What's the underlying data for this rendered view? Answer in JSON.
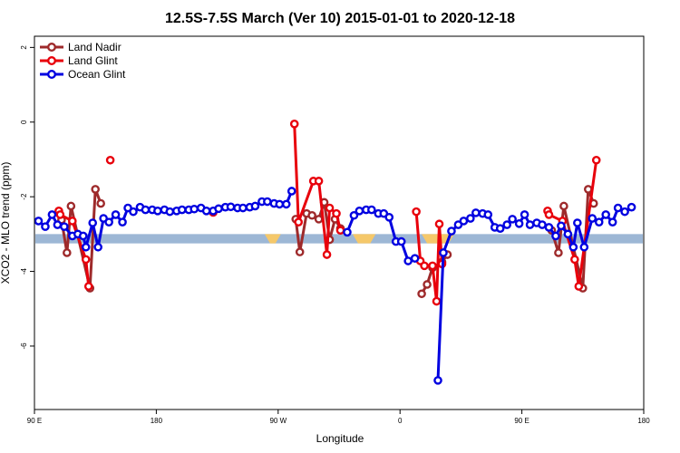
{
  "chart_data": {
    "type": "line",
    "title": "12.5S-7.5S March (Ver 10)   2015-01-01 to 2020-12-18",
    "xlabel": "Longitude",
    "ylabel": "XCO2 - MLO trend (ppm)",
    "xlim": [
      90,
      540
    ],
    "ylim": [
      -7.7,
      2.3
    ],
    "x_ticks": [
      {
        "value": 90,
        "label": "90 E"
      },
      {
        "value": 180,
        "label": "180"
      },
      {
        "value": 270,
        "label": "90 W"
      },
      {
        "value": 360,
        "label": "0"
      },
      {
        "value": 450,
        "label": "90 E"
      },
      {
        "value": 540,
        "label": "180"
      }
    ],
    "y_ticks": [
      {
        "value": 2,
        "label": "2"
      },
      {
        "value": 0,
        "label": "0"
      },
      {
        "value": -2,
        "label": "-2"
      },
      {
        "value": -4,
        "label": "-4"
      },
      {
        "value": -6,
        "label": "-6"
      }
    ],
    "legend_position": "top-left",
    "grid": false,
    "band": {
      "y_min": -3.25,
      "y_max": -3.0,
      "color": "#9db7d5",
      "highlight_color": "#f5c86a",
      "highlight_ranges": [
        [
          260,
          272
        ],
        [
          325,
          342
        ],
        [
          376,
          400
        ]
      ]
    },
    "series": [
      {
        "name": "Land Nadir",
        "color": "#9e2a2b",
        "points": [
          [
            110,
            -2.62
          ],
          [
            114,
            -3.5
          ],
          [
            117,
            -2.25
          ],
          [
            131,
            -4.45
          ],
          [
            135,
            -1.8
          ],
          [
            139,
            -2.18
          ],
          [
            283,
            -2.6
          ],
          [
            286,
            -3.48
          ],
          [
            291,
            -2.45
          ],
          [
            295,
            -2.5
          ],
          [
            300,
            -2.6
          ],
          [
            304,
            -2.15
          ],
          [
            308,
            -3.15
          ],
          [
            312,
            -2.6
          ],
          [
            316,
            -2.85
          ],
          [
            376,
            -4.6
          ],
          [
            380,
            -4.35
          ],
          [
            384,
            -3.9
          ],
          [
            391,
            -3.75
          ],
          [
            395,
            -3.55
          ],
          [
            472,
            -2.9
          ],
          [
            477,
            -3.5
          ],
          [
            481,
            -2.25
          ],
          [
            495,
            -4.45
          ],
          [
            499,
            -1.8
          ],
          [
            503,
            -2.18
          ]
        ]
      },
      {
        "name": "Land Glint",
        "color": "#e8000b",
        "points": [
          [
            108,
            -2.38
          ],
          [
            109,
            -2.48
          ],
          [
            118,
            -2.65
          ],
          [
            128,
            -3.68
          ],
          [
            130,
            -4.4
          ],
          [
            146,
            -1.02
          ],
          [
            222,
            -2.42
          ],
          [
            282,
            -0.05
          ],
          [
            285,
            -2.68
          ],
          [
            296,
            -1.58
          ],
          [
            300,
            -1.58
          ],
          [
            306,
            -3.55
          ],
          [
            308,
            -2.3
          ],
          [
            313,
            -2.45
          ],
          [
            316,
            -2.9
          ],
          [
            372,
            -2.4
          ],
          [
            375,
            -3.72
          ],
          [
            378,
            -3.85
          ],
          [
            384,
            -3.85
          ],
          [
            387,
            -4.8
          ],
          [
            389,
            -2.73
          ],
          [
            391,
            -3.8
          ],
          [
            469,
            -2.38
          ],
          [
            470,
            -2.48
          ],
          [
            480,
            -2.65
          ],
          [
            489,
            -3.68
          ],
          [
            492,
            -4.4
          ],
          [
            505,
            -1.02
          ]
        ]
      },
      {
        "name": "Ocean Glint",
        "color": "#0000e0",
        "points": [
          [
            93,
            -2.65
          ],
          [
            98,
            -2.8
          ],
          [
            103,
            -2.48
          ],
          [
            107,
            -2.75
          ],
          [
            112,
            -2.8
          ],
          [
            118,
            -3.05
          ],
          [
            122,
            -3.0
          ],
          [
            126,
            -3.05
          ],
          [
            128,
            -3.35
          ],
          [
            133,
            -2.7
          ],
          [
            137,
            -3.35
          ],
          [
            141,
            -2.58
          ],
          [
            145,
            -2.68
          ],
          [
            150,
            -2.48
          ],
          [
            155,
            -2.68
          ],
          [
            159,
            -2.3
          ],
          [
            163,
            -2.4
          ],
          [
            168,
            -2.28
          ],
          [
            172,
            -2.35
          ],
          [
            177,
            -2.35
          ],
          [
            181,
            -2.38
          ],
          [
            186,
            -2.35
          ],
          [
            190,
            -2.4
          ],
          [
            195,
            -2.38
          ],
          [
            199,
            -2.35
          ],
          [
            204,
            -2.35
          ],
          [
            208,
            -2.33
          ],
          [
            213,
            -2.3
          ],
          [
            217,
            -2.38
          ],
          [
            222,
            -2.38
          ],
          [
            226,
            -2.32
          ],
          [
            231,
            -2.28
          ],
          [
            235,
            -2.27
          ],
          [
            240,
            -2.3
          ],
          [
            244,
            -2.3
          ],
          [
            249,
            -2.28
          ],
          [
            253,
            -2.25
          ],
          [
            258,
            -2.13
          ],
          [
            262,
            -2.13
          ],
          [
            267,
            -2.18
          ],
          [
            271,
            -2.2
          ],
          [
            276,
            -2.2
          ],
          [
            280,
            -1.85
          ],
          [
            321,
            -2.95
          ],
          [
            326,
            -2.5
          ],
          [
            330,
            -2.38
          ],
          [
            335,
            -2.35
          ],
          [
            339,
            -2.35
          ],
          [
            344,
            -2.45
          ],
          [
            348,
            -2.45
          ],
          [
            352,
            -2.55
          ],
          [
            357,
            -3.2
          ],
          [
            361,
            -3.2
          ],
          [
            366,
            -3.72
          ],
          [
            371,
            -3.65
          ],
          [
            388,
            -6.92
          ],
          [
            392,
            -3.5
          ],
          [
            398,
            -2.92
          ],
          [
            403,
            -2.75
          ],
          [
            407,
            -2.65
          ],
          [
            412,
            -2.58
          ],
          [
            416,
            -2.43
          ],
          [
            421,
            -2.45
          ],
          [
            425,
            -2.48
          ],
          [
            430,
            -2.82
          ],
          [
            434,
            -2.85
          ],
          [
            439,
            -2.75
          ],
          [
            443,
            -2.6
          ],
          [
            448,
            -2.72
          ],
          [
            452,
            -2.48
          ],
          [
            456,
            -2.75
          ],
          [
            461,
            -2.7
          ],
          [
            465,
            -2.75
          ],
          [
            470,
            -2.82
          ],
          [
            475,
            -3.05
          ],
          [
            479,
            -2.78
          ],
          [
            484,
            -3.0
          ],
          [
            488,
            -3.35
          ],
          [
            491,
            -2.7
          ],
          [
            496,
            -3.35
          ],
          [
            502,
            -2.58
          ],
          [
            507,
            -2.68
          ],
          [
            512,
            -2.48
          ],
          [
            517,
            -2.68
          ],
          [
            521,
            -2.3
          ],
          [
            526,
            -2.4
          ],
          [
            531,
            -2.28
          ]
        ]
      }
    ]
  }
}
